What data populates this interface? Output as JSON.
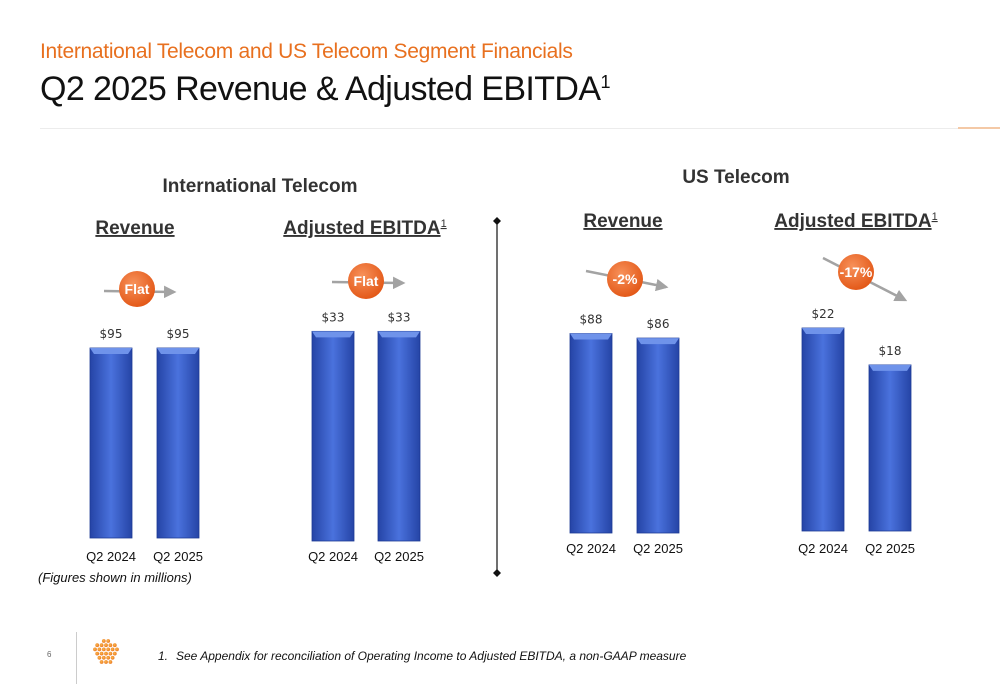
{
  "slide": {
    "subtitle": "International Telecom and US Telecom Segment Financials",
    "title": "Q2 2025 Revenue & Adjusted EBITDA",
    "title_superscript": "1",
    "page_number": "6",
    "figures_note": "(Figures shown in millions)",
    "footnote_number": "1.",
    "footnote_text": "See Appendix for reconciliation of Operating Income to Adjusted EBITDA, a non-GAAP measure"
  },
  "colors": {
    "accent": "#e8701f",
    "bar": "#3a5fcd",
    "badge": "#ee6a24",
    "arrow": "#a3a3a3"
  },
  "chart_data": [
    {
      "type": "bar",
      "group": "International Telecom",
      "title": "Revenue",
      "title_superscript": "",
      "categories": [
        "Q2 2024",
        "Q2 2025"
      ],
      "values": [
        95,
        95
      ],
      "value_labels": [
        "$95",
        "$95"
      ],
      "change_label": "Flat",
      "ylim": [
        0,
        100
      ]
    },
    {
      "type": "bar",
      "group": "International Telecom",
      "title": "Adjusted EBITDA",
      "title_superscript": "1",
      "categories": [
        "Q2 2024",
        "Q2 2025"
      ],
      "values": [
        33,
        33
      ],
      "value_labels": [
        "$33",
        "$33"
      ],
      "change_label": "Flat",
      "ylim": [
        0,
        34
      ]
    },
    {
      "type": "bar",
      "group": "US Telecom",
      "title": "Revenue",
      "title_superscript": "",
      "categories": [
        "Q2 2024",
        "Q2 2025"
      ],
      "values": [
        88,
        86
      ],
      "value_labels": [
        "$88",
        "$86"
      ],
      "change_label": "-2%",
      "ylim": [
        0,
        90
      ]
    },
    {
      "type": "bar",
      "group": "US Telecom",
      "title": "Adjusted EBITDA",
      "title_superscript": "1",
      "categories": [
        "Q2 2024",
        "Q2 2025"
      ],
      "values": [
        22,
        18
      ],
      "value_labels": [
        "$22",
        "$18"
      ],
      "change_label": "-17%",
      "ylim": [
        0,
        22
      ]
    }
  ]
}
